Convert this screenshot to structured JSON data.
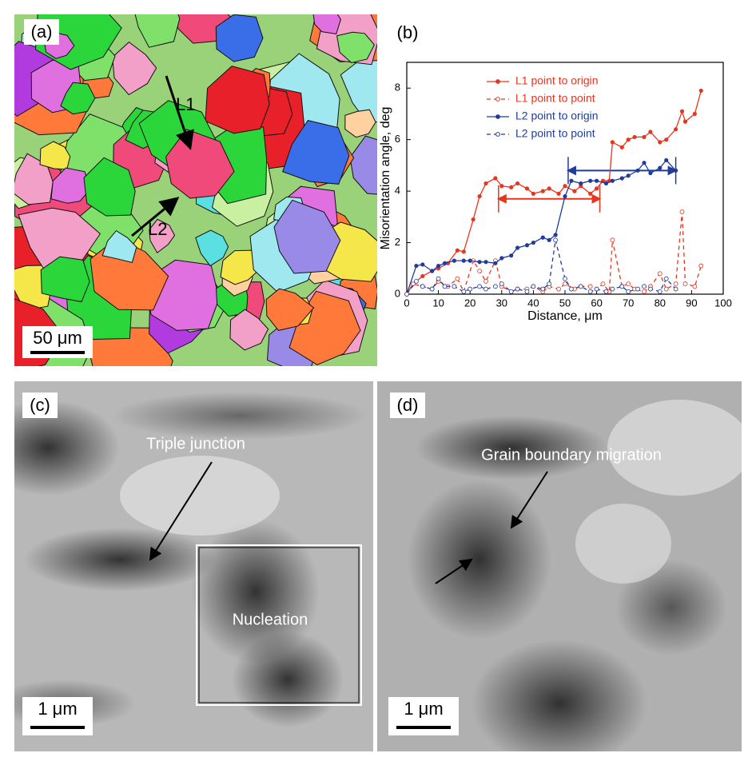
{
  "chart_data": {
    "type": "line",
    "panel_label": "(b)",
    "xlabel": "Distance, μm",
    "ylabel": "Misorientation angle, deg",
    "xlim": [
      0,
      100
    ],
    "ylim": [
      0,
      9
    ],
    "xticks": [
      0,
      10,
      20,
      30,
      40,
      50,
      60,
      70,
      80,
      90,
      100
    ],
    "yticks": [
      0,
      2,
      4,
      6,
      8
    ],
    "legend": "upper-left",
    "series": [
      {
        "name": "L1 point to origin",
        "color": "#e8351e",
        "dash": false,
        "marker": "filled",
        "x": [
          0,
          2,
          5,
          8,
          10,
          13,
          16,
          18,
          21,
          23,
          25,
          28,
          30,
          33,
          35,
          38,
          40,
          43,
          45,
          48,
          50,
          53,
          55,
          58,
          60,
          62,
          64,
          65,
          68,
          70,
          72,
          75,
          77,
          80,
          82,
          85,
          87,
          88,
          91,
          93
        ],
        "values": [
          0,
          0.4,
          0.7,
          0.9,
          1.0,
          1.2,
          1.7,
          1.65,
          2.9,
          3.8,
          4.3,
          4.5,
          4.2,
          4.15,
          4.3,
          4.1,
          3.9,
          4.0,
          4.1,
          3.9,
          4.2,
          4.0,
          4.2,
          3.9,
          4.1,
          4.4,
          4.4,
          5.9,
          5.7,
          6.0,
          6.1,
          6.1,
          6.3,
          5.9,
          6.0,
          6.4,
          7.1,
          6.7,
          7.0,
          7.9
        ]
      },
      {
        "name": "L1 point to point",
        "color": "#e8351e",
        "dash": true,
        "marker": "open",
        "x": [
          0,
          2,
          5,
          8,
          10,
          13,
          16,
          18,
          21,
          23,
          25,
          28,
          30,
          33,
          35,
          38,
          40,
          43,
          45,
          48,
          50,
          53,
          55,
          58,
          60,
          62,
          64,
          65,
          68,
          70,
          72,
          75,
          77,
          80,
          82,
          85,
          87,
          88,
          91,
          93
        ],
        "values": [
          0,
          0.4,
          0.3,
          0.2,
          0.5,
          0.3,
          0.6,
          0.1,
          1.3,
          0.9,
          0.5,
          1.3,
          0.3,
          0.1,
          0.2,
          0.2,
          0.3,
          0.1,
          0.3,
          0.2,
          0.4,
          0.2,
          0.3,
          0.3,
          0.2,
          0.4,
          0.1,
          2.1,
          0.3,
          0.4,
          0.2,
          0.1,
          0.3,
          0.8,
          0.2,
          0.4,
          3.2,
          0.4,
          0.3,
          1.1
        ]
      },
      {
        "name": "L2 point to origin",
        "color": "#1f3c9c",
        "dash": false,
        "marker": "filled",
        "x": [
          0,
          3,
          5,
          8,
          10,
          12,
          15,
          18,
          20,
          23,
          25,
          28,
          30,
          33,
          35,
          38,
          40,
          43,
          45,
          47,
          50,
          52,
          55,
          58,
          60,
          63,
          65,
          68,
          70,
          73,
          75,
          77,
          80,
          82,
          85
        ],
        "values": [
          0,
          1.1,
          1.15,
          0.9,
          1.1,
          1.2,
          1.3,
          1.3,
          1.3,
          1.25,
          1.25,
          1.2,
          1.4,
          1.5,
          1.8,
          1.9,
          2.0,
          2.2,
          2.1,
          2.3,
          3.8,
          4.4,
          4.3,
          4.4,
          4.4,
          4.3,
          4.4,
          4.5,
          4.6,
          4.8,
          5.1,
          4.7,
          4.9,
          5.2,
          4.8
        ]
      },
      {
        "name": "L2 point to point",
        "color": "#1f3c9c",
        "dash": true,
        "marker": "open",
        "x": [
          0,
          3,
          5,
          8,
          10,
          12,
          15,
          18,
          20,
          23,
          25,
          28,
          30,
          33,
          35,
          38,
          40,
          43,
          45,
          47,
          50,
          52,
          55,
          58,
          60,
          63,
          65,
          68,
          70,
          73,
          75,
          77,
          80,
          82,
          85
        ],
        "values": [
          0,
          0.5,
          0.3,
          0.2,
          0.6,
          0.3,
          0.3,
          0.1,
          0.2,
          0.3,
          0.2,
          0.3,
          0.4,
          0.1,
          0.2,
          0.1,
          0.3,
          0.2,
          0.4,
          2.1,
          0.6,
          0.2,
          0.3,
          0.1,
          0.2,
          0.1,
          0.2,
          0.3,
          0.1,
          0.2,
          0.3,
          0.2,
          0.1,
          0.6,
          0.2
        ]
      }
    ],
    "brackets": [
      {
        "color": "#e8351e",
        "x": [
          29,
          61
        ],
        "y": 3.7
      },
      {
        "color": "#1f3c9c",
        "x": [
          51,
          85
        ],
        "y": 4.8
      }
    ]
  },
  "panel_a": {
    "label": "(a)",
    "line_1": "L1",
    "line_2": "L2",
    "scale_bar": "50 μm"
  },
  "panel_c": {
    "label": "(c)",
    "annotation_1": "Triple junction",
    "annotation_2": "Nucleation",
    "scale_bar": "1 μm"
  },
  "panel_d": {
    "label": "(d)",
    "annotation_1": "Grain boundary migration",
    "scale_bar": "1 μm"
  }
}
